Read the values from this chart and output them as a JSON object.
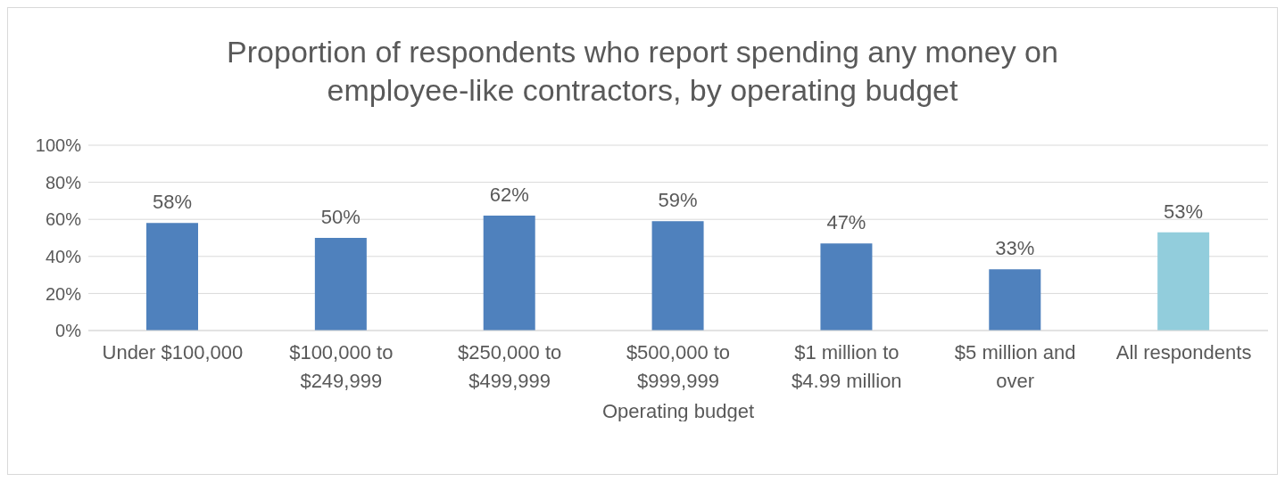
{
  "chart_data": {
    "type": "bar",
    "title": "Proportion of respondents who report spending any money on employee-like contractors, by operating budget",
    "xlabel": "Operating budget",
    "categories": [
      "Under $100,000",
      "$100,000 to $249,999",
      "$250,000 to $499,999",
      "$500,000 to $999,999",
      "$1 million to $4.99 million",
      "$5 million and over",
      "All respondents"
    ],
    "values": [
      58,
      50,
      62,
      59,
      47,
      33,
      53
    ],
    "colors": [
      "#4f81bd",
      "#4f81bd",
      "#4f81bd",
      "#4f81bd",
      "#4f81bd",
      "#4f81bd",
      "#92cddc"
    ],
    "value_labels": [
      "58%",
      "50%",
      "62%",
      "59%",
      "47%",
      "33%",
      "53%"
    ],
    "ylim": [
      0,
      100
    ],
    "yticks": [
      {
        "value": 0,
        "label": "0%"
      },
      {
        "value": 20,
        "label": "20%"
      },
      {
        "value": 40,
        "label": "40%"
      },
      {
        "value": 60,
        "label": "60%"
      },
      {
        "value": 80,
        "label": "80%"
      },
      {
        "value": 100,
        "label": "100%"
      }
    ],
    "grid": "y"
  }
}
